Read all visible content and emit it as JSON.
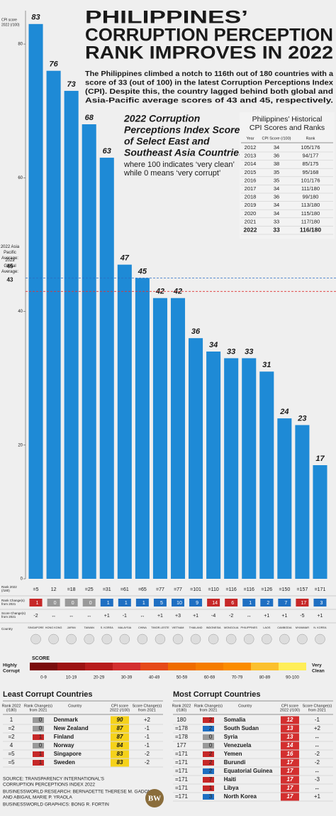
{
  "header": {
    "title": [
      "PHILIPPINES’",
      "CORRUPTION PERCEPTION",
      "RANK IMPROVES IN 2022"
    ],
    "intro": [
      "The Philippines climbed a notch to 116th out of 180 countries with a",
      "score of 33 (out of 100) in the latest Corruption Perceptions Index",
      "(CPI). Despite this, the country lagged behind both global and",
      "Asia-Pacific average scores of 43 and 45, respectively."
    ]
  },
  "chart_data": {
    "type": "bar",
    "title": [
      "2022 Corruption",
      "Perceptions Index Scores",
      "of Select East and",
      "Southeast Asia Countries"
    ],
    "subtitle": [
      "where 100 indicates ‘very clean’",
      "while 0 means ‘very corrupt’"
    ],
    "y_label": [
      "CPI score",
      "2022 (/100)"
    ],
    "categories": [
      "SINGAPORE",
      "HONG KONG",
      "JAPAN",
      "TAIWAN",
      "S. KOREA",
      "MALAYSIA",
      "CHINA",
      "TIMOR-LESTE",
      "VIETNAM",
      "THAILAND",
      "INDONESIA",
      "MONGOLIA",
      "PHILIPPINES",
      "LAOS",
      "CAMBODIA",
      "MYANMAR",
      "N. KOREA"
    ],
    "values": [
      83,
      76,
      73,
      68,
      63,
      47,
      45,
      42,
      42,
      36,
      34,
      33,
      33,
      31,
      24,
      23,
      17
    ],
    "color": "#1e8ad6",
    "ylim": [
      0,
      85
    ],
    "yticks": [
      0,
      20,
      40,
      60,
      80
    ],
    "reference_lines": [
      {
        "label": [
          "2022 Asia",
          "Pacific",
          "Average:"
        ],
        "value": 45,
        "color": "#2b6cc4"
      },
      {
        "label": [
          "2022",
          "Global",
          "Average:"
        ],
        "value": 43,
        "color": "#d33"
      }
    ],
    "row_labels": {
      "rank": [
        "Rank 2022",
        "(/180)"
      ],
      "rank_change": [
        "Rank Change(s)",
        "from 2021"
      ],
      "score_change": [
        "Score Change(s)",
        "from 2021"
      ],
      "country": [
        "Country"
      ]
    },
    "rank_2022": [
      "=5",
      "12",
      "=18",
      "=25",
      "=31",
      "=61",
      "=65",
      "=77",
      "=77",
      "=101",
      "=110",
      "=116",
      "=116",
      "=126",
      "=150",
      "=157",
      "=171"
    ],
    "rank_change": {
      "values": [
        "1",
        "0",
        "0",
        "0",
        "1",
        "1",
        "1",
        "5",
        "10",
        "9",
        "14",
        "6",
        "1",
        "2",
        "7",
        "17",
        "3"
      ],
      "direction": [
        "down",
        "same",
        "same",
        "same",
        "up",
        "up",
        "up",
        "up",
        "up",
        "up",
        "down",
        "down",
        "up",
        "up",
        "up",
        "down",
        "up"
      ]
    },
    "score_change": [
      "-2",
      "↔",
      "↔",
      "↔",
      "+1",
      "-1",
      "↔",
      "+1",
      "+3",
      "+1",
      "-4",
      "-2",
      "↔",
      "+1",
      "+1",
      "-5",
      "+1"
    ]
  },
  "history": {
    "title": [
      "Philippines’ Historical",
      "CPI Scores and Ranks"
    ],
    "headers": [
      "Year",
      "CPI Score (/100)",
      "Rank"
    ],
    "rows": [
      [
        2012,
        34,
        "105/176"
      ],
      [
        2013,
        36,
        "94/177"
      ],
      [
        2014,
        38,
        "85/175"
      ],
      [
        2015,
        35,
        "95/168"
      ],
      [
        2016,
        35,
        "101/176"
      ],
      [
        2017,
        34,
        "111/180"
      ],
      [
        2018,
        36,
        "99/180"
      ],
      [
        2019,
        34,
        "113/180"
      ],
      [
        2020,
        34,
        "115/180"
      ],
      [
        2021,
        33,
        "117/180"
      ],
      [
        2022,
        33,
        "116/180"
      ]
    ]
  },
  "scale": {
    "low": [
      "Highly",
      "Corrupt"
    ],
    "title": "SCORE",
    "high": [
      "Very",
      "Clean"
    ],
    "ranges": [
      "0-9",
      "10-19",
      "20-29",
      "30-39",
      "40-49",
      "50-59",
      "60-69",
      "70-79",
      "80-89",
      "90-100"
    ]
  },
  "least_corrupt": {
    "title": "Least Corrupt Countries",
    "headers": [
      [
        "Rank 2022",
        "(/180)"
      ],
      [
        "Rank Change(s)",
        "from 2021"
      ],
      [
        "Country"
      ],
      [
        "CPI score",
        "2022 (/100)"
      ],
      [
        "Score Change(s)",
        "from 2021"
      ]
    ],
    "rows": [
      [
        "1",
        "0",
        "Denmark",
        90,
        "+2"
      ],
      [
        "=2",
        "0",
        "New Zealand",
        87,
        "-1"
      ],
      [
        "=2",
        "1",
        "Finland",
        87,
        "-1"
      ],
      [
        "4",
        "0",
        "Norway",
        84,
        "-1"
      ],
      [
        "=5",
        "1",
        "Singapore",
        83,
        "-2"
      ],
      [
        "=5",
        "1",
        "Sweden",
        83,
        "-2"
      ]
    ],
    "direction": [
      "same",
      "same",
      "down",
      "same",
      "down",
      "down"
    ]
  },
  "most_corrupt": {
    "title": "Most Corrupt Countries",
    "headers": [
      [
        "Rank 2022",
        "(/180)"
      ],
      [
        "Rank Change(s)",
        "from 2021"
      ],
      [
        "Country"
      ],
      [
        "CPI score",
        "2022 (/100)"
      ],
      [
        "Score Change(s)",
        "from 2021"
      ]
    ],
    "rows": [
      [
        "180",
        "2",
        "Somalia",
        12,
        "-1"
      ],
      [
        "=178",
        "2",
        "South Sudan",
        13,
        "+2"
      ],
      [
        "=178",
        "0",
        "Syria",
        13,
        "↔"
      ],
      [
        "177",
        "0",
        "Venezuela",
        14,
        "↔"
      ],
      [
        "=171",
        "2",
        "Yemen",
        16,
        "-2"
      ],
      [
        "=171",
        "2",
        "Burundi",
        17,
        "-2"
      ],
      [
        "=171",
        "2",
        "Equatorial Guinea",
        17,
        "↔"
      ],
      [
        "=171",
        "7",
        "Haiti",
        17,
        "-3"
      ],
      [
        "=171",
        "1",
        "Libya",
        17,
        "↔"
      ],
      [
        "=171",
        "3",
        "North Korea",
        17,
        "+1"
      ]
    ],
    "direction": [
      "down",
      "up",
      "same",
      "same",
      "down",
      "down",
      "up",
      "down",
      "down",
      "up"
    ]
  },
  "footer": {
    "source": [
      "SOURCE: TRANSPARENCY INTERNATIONAL’S",
      "CORRUPTION PERCEPTIONS INDEX 2022"
    ],
    "research": [
      "BUSINESSWORLD RESEARCH: BERNADETTE THERESE M. GADON",
      "AND ABIGAIL MARIE P. YRAOLA"
    ],
    "graphics": "BUSINESSWORLD GRAPHICS: BONG R. FORTIN",
    "logo": "BW"
  }
}
